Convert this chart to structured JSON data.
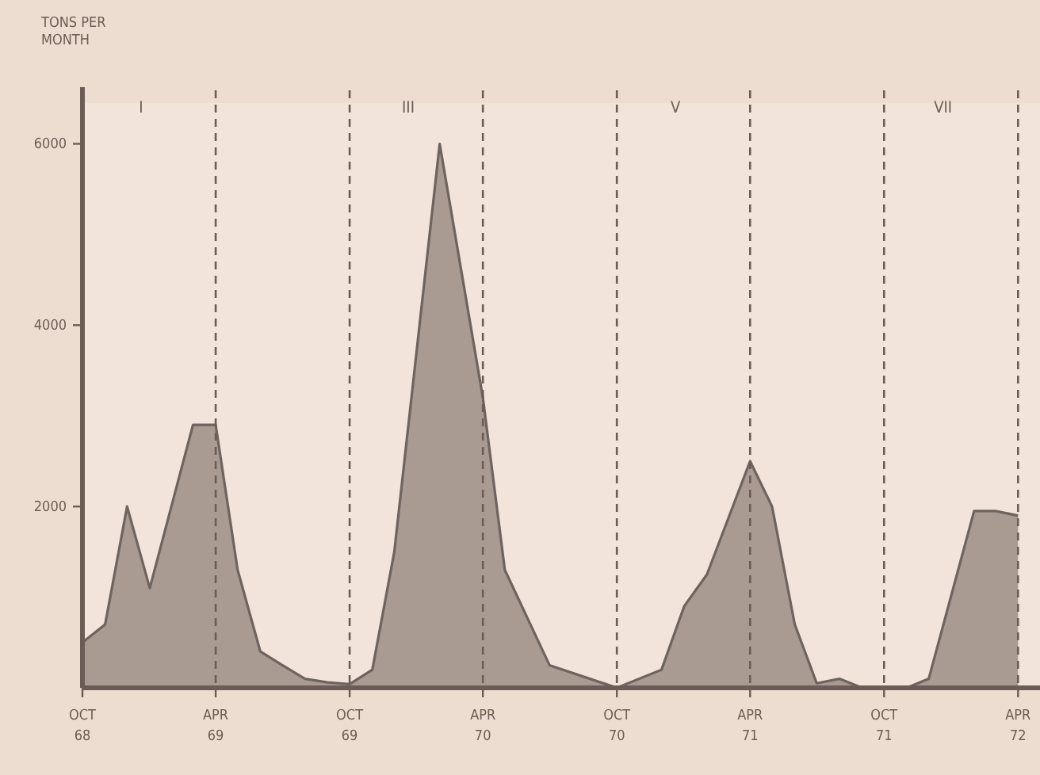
{
  "chart_data": {
    "type": "area",
    "ylabel": "TONS PER\nMONTH",
    "xlim": [
      "1968-10",
      "1972-05"
    ],
    "ylim": [
      0,
      6450
    ],
    "yticks": [
      2000,
      4000,
      6000
    ],
    "xticks": [
      {
        "value": "1968-10",
        "label": "OCT\n68"
      },
      {
        "value": "1969-04",
        "label": "APR\n69"
      },
      {
        "value": "1969-10",
        "label": "OCT\n69"
      },
      {
        "value": "1970-04",
        "label": "APR\n70"
      },
      {
        "value": "1970-10",
        "label": "OCT\n70"
      },
      {
        "value": "1971-04",
        "label": "APR\n71"
      },
      {
        "value": "1971-10",
        "label": "OCT\n71"
      },
      {
        "value": "1972-04",
        "label": "APR\n72"
      }
    ],
    "x": [
      "1968-10",
      "1968-11",
      "1968-12",
      "1969-01",
      "1969-03",
      "1969-04",
      "1969-05",
      "1969-06",
      "1969-07",
      "1969-08",
      "1969-09",
      "1969-10",
      "1969-11",
      "1969-12",
      "1970-02",
      "1970-04",
      "1970-05",
      "1970-07",
      "1970-10",
      "1970-12",
      "1971-01",
      "1971-02",
      "1971-04",
      "1971-05",
      "1971-06",
      "1971-07",
      "1971-08",
      "1971-09",
      "1971-11",
      "1971-12",
      "1972-02",
      "1972-03",
      "1972-04"
    ],
    "series": [
      {
        "color": "#a99a92",
        "values": [
          500,
          700,
          2000,
          1100,
          2900,
          2900,
          1300,
          400,
          250,
          100,
          60,
          40,
          200,
          1500,
          6000,
          3200,
          1300,
          250,
          0,
          200,
          900,
          1250,
          2500,
          2000,
          700,
          50,
          100,
          0,
          0,
          100,
          1950,
          1950,
          1900
        ]
      }
    ],
    "annotations": [
      "I",
      "III",
      "V",
      "VII"
    ],
    "grid": "x"
  }
}
